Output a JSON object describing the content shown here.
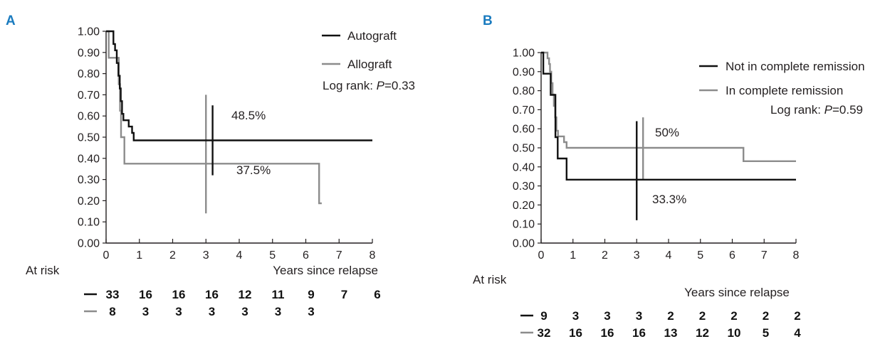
{
  "colors": {
    "panel_letter": "#1a7bbf",
    "axis": "#231f20",
    "series_black": "#111111",
    "series_gray": "#8c8c8c"
  },
  "chart_data": [
    {
      "panel": "A",
      "type": "line",
      "title": "",
      "xlabel": "Years since relapse",
      "ylabel": "",
      "xlim": [
        0,
        8
      ],
      "ylim": [
        0,
        1
      ],
      "x_ticks": [
        "0",
        "1",
        "2",
        "3",
        "4",
        "5",
        "6",
        "7",
        "8"
      ],
      "y_ticks": [
        "0.00",
        "0.10",
        "0.20",
        "0.30",
        "0.40",
        "0.50",
        "0.60",
        "0.70",
        "0.80",
        "0.90",
        "1.00"
      ],
      "legend_position": "top-right",
      "log_rank": {
        "prefix": "Log rank: ",
        "p_label": "P",
        "value": "=0.33"
      },
      "series": [
        {
          "name": "Autograft",
          "color": "#111111",
          "step_points": [
            [
              0,
              1.0
            ],
            [
              0.22,
              1.0
            ],
            [
              0.22,
              0.94
            ],
            [
              0.27,
              0.94
            ],
            [
              0.27,
              0.91
            ],
            [
              0.32,
              0.91
            ],
            [
              0.32,
              0.85
            ],
            [
              0.37,
              0.85
            ],
            [
              0.37,
              0.79
            ],
            [
              0.41,
              0.79
            ],
            [
              0.41,
              0.73
            ],
            [
              0.44,
              0.73
            ],
            [
              0.44,
              0.67
            ],
            [
              0.48,
              0.67
            ],
            [
              0.48,
              0.61
            ],
            [
              0.52,
              0.61
            ],
            [
              0.52,
              0.58
            ],
            [
              0.68,
              0.58
            ],
            [
              0.68,
              0.55
            ],
            [
              0.78,
              0.55
            ],
            [
              0.78,
              0.52
            ],
            [
              0.83,
              0.52
            ],
            [
              0.83,
              0.485
            ],
            [
              8.0,
              0.485
            ]
          ],
          "cross": {
            "x": 3.2,
            "low": 0.32,
            "high": 0.65
          },
          "annotation": "48.5%",
          "at_risk": [
            "33",
            "16",
            "16",
            "16",
            "12",
            "11",
            "9",
            "7",
            "6"
          ]
        },
        {
          "name": "Allograft",
          "color": "#8c8c8c",
          "step_points": [
            [
              0,
              1.0
            ],
            [
              0.08,
              1.0
            ],
            [
              0.08,
              0.875
            ],
            [
              0.38,
              0.875
            ],
            [
              0.38,
              0.75
            ],
            [
              0.42,
              0.75
            ],
            [
              0.42,
              0.625
            ],
            [
              0.45,
              0.625
            ],
            [
              0.45,
              0.5
            ],
            [
              0.55,
              0.5
            ],
            [
              0.55,
              0.375
            ],
            [
              6.4,
              0.375
            ],
            [
              6.4,
              0.1875
            ],
            [
              6.48,
              0.1875
            ]
          ],
          "cross": {
            "x": 3.0,
            "low": 0.14,
            "high": 0.7
          },
          "annotation": "37.5%",
          "at_risk": [
            "8",
            "3",
            "3",
            "3",
            "3",
            "3",
            "3",
            "",
            ""
          ]
        }
      ],
      "at_risk_label": "At risk"
    },
    {
      "panel": "B",
      "type": "line",
      "title": "",
      "xlabel": "Years since relapse",
      "ylabel": "",
      "xlim": [
        0,
        8
      ],
      "ylim": [
        0,
        1
      ],
      "x_ticks": [
        "0",
        "1",
        "2",
        "3",
        "4",
        "5",
        "6",
        "7",
        "8"
      ],
      "y_ticks": [
        "0.00",
        "0.10",
        "0.20",
        "0.30",
        "0.40",
        "0.50",
        "0.60",
        "0.70",
        "0.80",
        "0.90",
        "1.00"
      ],
      "legend_position": "top-right",
      "log_rank": {
        "prefix": "Log rank: ",
        "p_label": "P",
        "value": "=0.59"
      },
      "series": [
        {
          "name": "Not in complete remission",
          "color": "#111111",
          "step_points": [
            [
              0,
              1.0
            ],
            [
              0.07,
              1.0
            ],
            [
              0.07,
              0.889
            ],
            [
              0.3,
              0.889
            ],
            [
              0.3,
              0.778
            ],
            [
              0.45,
              0.778
            ],
            [
              0.45,
              0.556
            ],
            [
              0.52,
              0.556
            ],
            [
              0.52,
              0.444
            ],
            [
              0.8,
              0.444
            ],
            [
              0.8,
              0.333
            ],
            [
              8.0,
              0.333
            ]
          ],
          "cross": {
            "x": 3.0,
            "low": 0.12,
            "high": 0.64
          },
          "annotation": "33.3%",
          "at_risk": [
            "9",
            "3",
            "3",
            "3",
            "2",
            "2",
            "2",
            "2",
            "2"
          ]
        },
        {
          "name": "In complete remission",
          "color": "#8c8c8c",
          "step_points": [
            [
              0,
              1.0
            ],
            [
              0.2,
              1.0
            ],
            [
              0.2,
              0.97
            ],
            [
              0.25,
              0.97
            ],
            [
              0.25,
              0.94
            ],
            [
              0.28,
              0.94
            ],
            [
              0.28,
              0.9
            ],
            [
              0.32,
              0.9
            ],
            [
              0.32,
              0.84
            ],
            [
              0.36,
              0.84
            ],
            [
              0.36,
              0.78
            ],
            [
              0.4,
              0.78
            ],
            [
              0.4,
              0.72
            ],
            [
              0.44,
              0.72
            ],
            [
              0.44,
              0.66
            ],
            [
              0.48,
              0.66
            ],
            [
              0.48,
              0.59
            ],
            [
              0.53,
              0.59
            ],
            [
              0.53,
              0.56
            ],
            [
              0.72,
              0.56
            ],
            [
              0.72,
              0.53
            ],
            [
              0.8,
              0.53
            ],
            [
              0.8,
              0.5
            ],
            [
              6.35,
              0.5
            ],
            [
              6.35,
              0.43
            ],
            [
              8.0,
              0.43
            ]
          ],
          "cross": {
            "x": 3.2,
            "low": 0.33,
            "high": 0.66
          },
          "annotation": "50%",
          "at_risk": [
            "32",
            "16",
            "16",
            "16",
            "13",
            "12",
            "10",
            "5",
            "4"
          ]
        }
      ],
      "at_risk_label": "At risk"
    }
  ]
}
